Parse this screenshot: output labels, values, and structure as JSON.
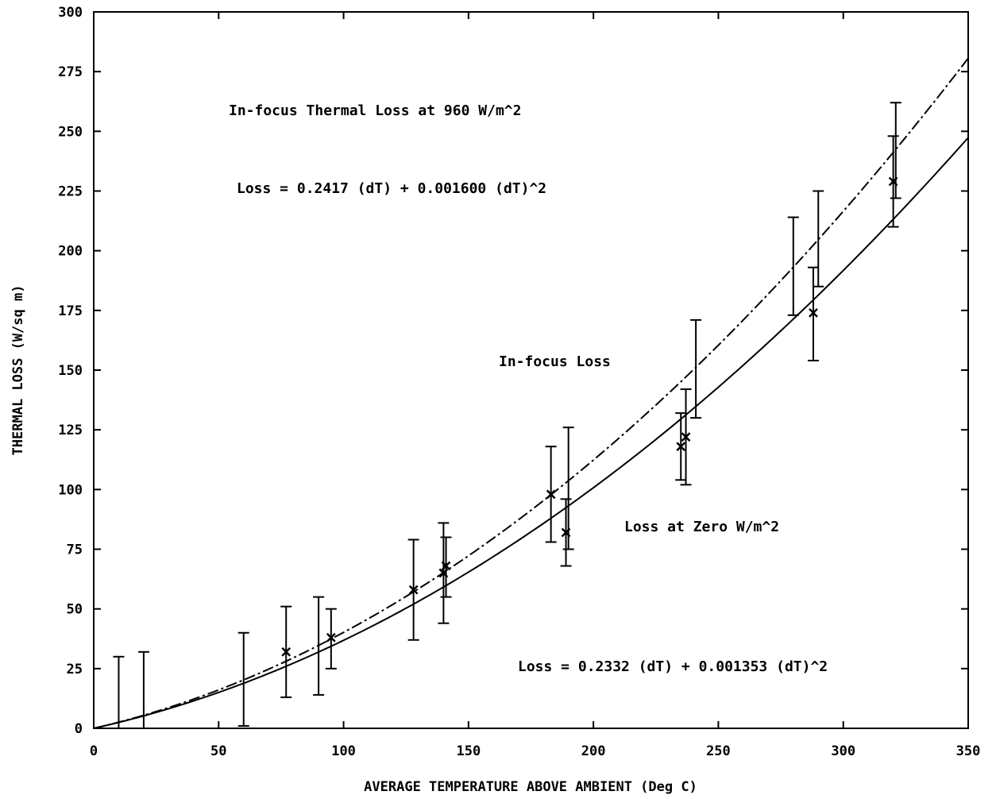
{
  "chart_data": {
    "type": "scatter",
    "title": "",
    "xlabel": "AVERAGE TEMPERATURE ABOVE AMBIENT   (Deg C)",
    "ylabel": "THERMAL LOSS   (W/sq m)",
    "xlim": [
      0,
      350
    ],
    "ylim": [
      0,
      300
    ],
    "xticks": [
      "0",
      "50",
      "100",
      "150",
      "200",
      "250",
      "300",
      "350"
    ],
    "yticks": [
      "0",
      "25",
      "50",
      "75",
      "100",
      "125",
      "150",
      "175",
      "200",
      "225",
      "250",
      "275",
      "300"
    ],
    "grid": false,
    "legend": "none",
    "annotations": {
      "title_infocus": "In-focus Thermal Loss at 960 W/m^2",
      "eq_infocus": "Loss = 0.2417 (dT) + 0.001600 (dT)^2",
      "label_infocus": "In-focus Loss",
      "label_zero": "Loss at Zero W/m^2",
      "eq_zero": "Loss = 0.2332 (dT) + 0.001353 (dT)^2"
    },
    "series": [
      {
        "kind": "fit-curve",
        "style": "dashed",
        "a": 0.2417,
        "b": 0.0016,
        "x_range": [
          0,
          350
        ]
      },
      {
        "kind": "fit-curve",
        "style": "solid",
        "a": 0.2332,
        "b": 0.001353,
        "x_range": [
          0,
          350
        ]
      },
      {
        "kind": "measurements",
        "points": [
          {
            "x": 10,
            "y": 14,
            "lo": 0,
            "hi": 30,
            "marker": false
          },
          {
            "x": 20,
            "y": 16,
            "lo": 0,
            "hi": 32,
            "marker": false
          },
          {
            "x": 60,
            "y": 20,
            "lo": 1,
            "hi": 40,
            "marker": false
          },
          {
            "x": 77,
            "y": 32,
            "lo": 13,
            "hi": 51,
            "marker": true
          },
          {
            "x": 90,
            "y": 35,
            "lo": 14,
            "hi": 55,
            "marker": false
          },
          {
            "x": 95,
            "y": 38,
            "lo": 25,
            "hi": 50,
            "marker": true
          },
          {
            "x": 128,
            "y": 58,
            "lo": 37,
            "hi": 79,
            "marker": true
          },
          {
            "x": 140,
            "y": 65,
            "lo": 44,
            "hi": 86,
            "marker": true
          },
          {
            "x": 141,
            "y": 68,
            "lo": 55,
            "hi": 80,
            "marker": true
          },
          {
            "x": 183,
            "y": 98,
            "lo": 78,
            "hi": 118,
            "marker": true
          },
          {
            "x": 189,
            "y": 82,
            "lo": 68,
            "hi": 96,
            "marker": true
          },
          {
            "x": 190,
            "y": 100,
            "lo": 75,
            "hi": 126,
            "marker": false
          },
          {
            "x": 235,
            "y": 118,
            "lo": 104,
            "hi": 132,
            "marker": true
          },
          {
            "x": 237,
            "y": 122,
            "lo": 102,
            "hi": 142,
            "marker": true
          },
          {
            "x": 241,
            "y": 150,
            "lo": 130,
            "hi": 171,
            "marker": false
          },
          {
            "x": 280,
            "y": 193,
            "lo": 173,
            "hi": 214,
            "marker": false
          },
          {
            "x": 288,
            "y": 174,
            "lo": 154,
            "hi": 193,
            "marker": true
          },
          {
            "x": 290,
            "y": 205,
            "lo": 185,
            "hi": 225,
            "marker": false
          },
          {
            "x": 320,
            "y": 229,
            "lo": 210,
            "hi": 248,
            "marker": true
          },
          {
            "x": 321,
            "y": 241,
            "lo": 222,
            "hi": 262,
            "marker": false
          }
        ]
      }
    ]
  }
}
